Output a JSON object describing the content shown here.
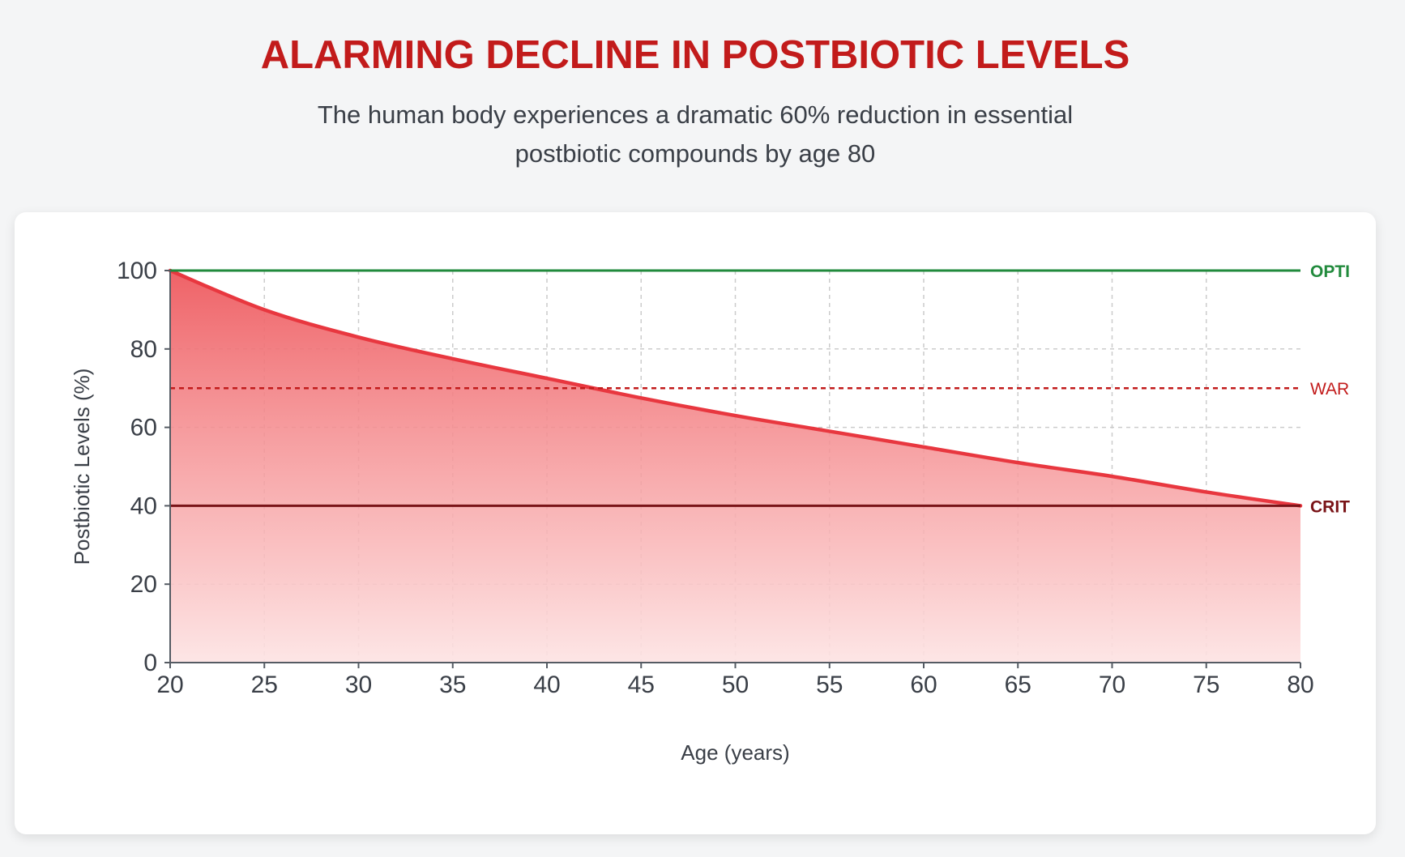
{
  "header": {
    "title": "ALARMING DECLINE IN POSTBIOTIC LEVELS",
    "subtitle": "The human body experiences a dramatic 60% reduction in essential postbiotic compounds by age 80"
  },
  "chart_data": {
    "type": "area",
    "xlabel": "Age (years)",
    "ylabel": "Postbiotic Levels (%)",
    "xlim": [
      20,
      80
    ],
    "ylim": [
      0,
      100
    ],
    "x_ticks": [
      20,
      25,
      30,
      35,
      40,
      45,
      50,
      55,
      60,
      65,
      70,
      75,
      80
    ],
    "y_ticks": [
      0,
      20,
      40,
      60,
      80,
      100
    ],
    "grid": true,
    "series": [
      {
        "x": [
          20,
          25,
          30,
          35,
          40,
          45,
          50,
          55,
          60,
          65,
          70,
          75,
          80
        ],
        "values": [
          100,
          90,
          83,
          77.5,
          72.5,
          67.5,
          63,
          59,
          55,
          51,
          47.5,
          43.5,
          40
        ],
        "color": "#e8373f"
      }
    ],
    "reference_lines": [
      {
        "label": "OPTI",
        "value": 100,
        "color": "#218a3c",
        "style": "solid"
      },
      {
        "label": "WAR",
        "value": 70,
        "color": "#c21b1b",
        "style": "dashed"
      },
      {
        "label": "CRIT",
        "value": 40,
        "color": "#7a1418",
        "style": "solid"
      }
    ]
  }
}
